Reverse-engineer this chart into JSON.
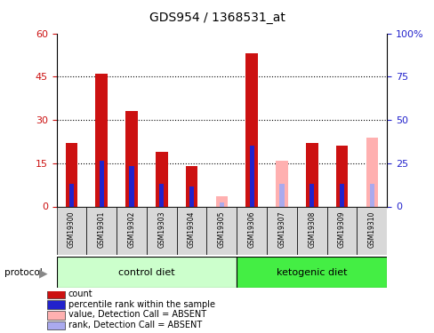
{
  "title": "GDS954 / 1368531_at",
  "samples": [
    "GSM19300",
    "GSM19301",
    "GSM19302",
    "GSM19303",
    "GSM19304",
    "GSM19305",
    "GSM19306",
    "GSM19307",
    "GSM19308",
    "GSM19309",
    "GSM19310"
  ],
  "absent": [
    false,
    false,
    false,
    false,
    false,
    true,
    false,
    true,
    false,
    false,
    true
  ],
  "red_values": [
    22,
    46,
    33,
    19,
    14,
    0,
    53,
    0,
    22,
    21,
    0
  ],
  "blue_values": [
    8,
    16,
    14,
    8,
    7,
    0,
    21,
    0,
    8,
    8,
    0
  ],
  "pink_values": [
    0,
    0,
    0,
    0,
    0,
    3.5,
    0,
    16,
    0,
    0,
    24
  ],
  "lblue_values": [
    0,
    0,
    0,
    0,
    0,
    1.5,
    0,
    8,
    0,
    0,
    8
  ],
  "ylim_left": [
    0,
    60
  ],
  "ylim_right": [
    0,
    100
  ],
  "yticks_left": [
    0,
    15,
    30,
    45,
    60
  ],
  "yticks_right": [
    0,
    25,
    50,
    75,
    100
  ],
  "ytick_labels_left": [
    "0",
    "15",
    "30",
    "45",
    "60"
  ],
  "ytick_labels_right": [
    "0",
    "25",
    "50",
    "75",
    "100%"
  ],
  "color_red": "#cc1111",
  "color_blue": "#2222cc",
  "color_pink": "#ffb0b0",
  "color_lblue": "#aaaaee",
  "color_control_bg": "#ccffcc",
  "color_keto_bg": "#44ee44",
  "color_sample_bg": "#d8d8d8",
  "bar_width": 0.4,
  "legend_items": [
    [
      "#cc1111",
      "count"
    ],
    [
      "#2222cc",
      "percentile rank within the sample"
    ],
    [
      "#ffb0b0",
      "value, Detection Call = ABSENT"
    ],
    [
      "#aaaaee",
      "rank, Detection Call = ABSENT"
    ]
  ]
}
